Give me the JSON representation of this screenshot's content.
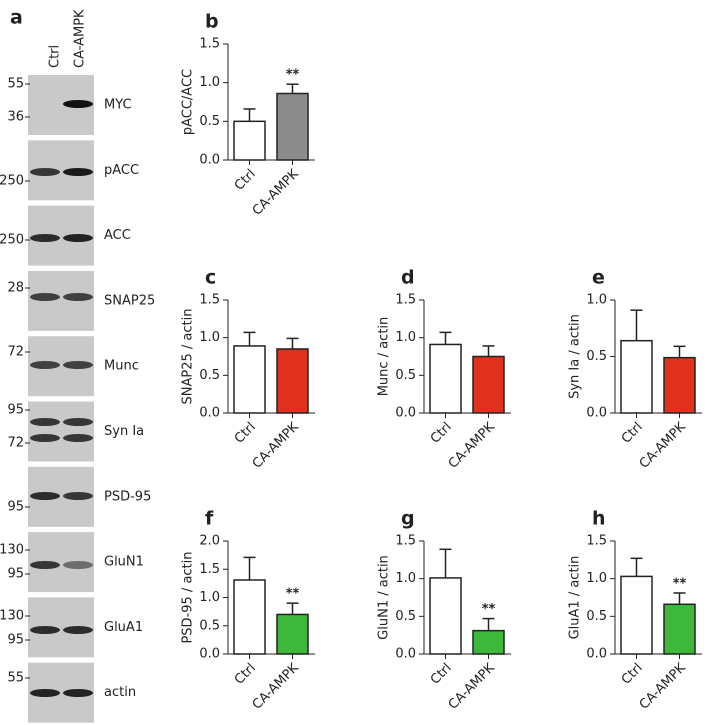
{
  "blot": {
    "panel_label": "a",
    "lanes": [
      "Ctrl",
      "CA-AMPK"
    ],
    "rows": [
      {
        "label": "MYC",
        "markers": [
          "55",
          "36"
        ]
      },
      {
        "label": "pACC",
        "markers": [
          "250"
        ]
      },
      {
        "label": "ACC",
        "markers": [
          "250"
        ]
      },
      {
        "label": "SNAP25",
        "markers": [
          "28"
        ]
      },
      {
        "label": "Munc",
        "markers": [
          "72"
        ]
      },
      {
        "label": "Syn Ia",
        "markers": [
          "95",
          "72"
        ]
      },
      {
        "label": "PSD-95",
        "markers": [
          "95"
        ]
      },
      {
        "label": "GluN1",
        "markers": [
          "130",
          "95"
        ]
      },
      {
        "label": "GluA1",
        "markers": [
          "130",
          "95"
        ]
      },
      {
        "label": "actin",
        "markers": [
          "55"
        ]
      }
    ]
  },
  "chart_data": [
    {
      "type": "bar",
      "panel_label": "b",
      "y_label": "pACC/ACC",
      "categories": [
        "Ctrl",
        "CA-AMPK"
      ],
      "values": [
        0.5,
        0.86
      ],
      "errors": [
        0.16,
        0.12
      ],
      "colors": [
        "#ffffff",
        "#8c8c8c"
      ],
      "significance": [
        null,
        "**"
      ],
      "ylim": [
        0,
        1.5
      ],
      "yticks": [
        {
          "value": 0,
          "label": "0.0"
        },
        0.5,
        {
          "value": 1,
          "label": "1.0"
        },
        1.5
      ]
    },
    {
      "type": "bar",
      "panel_label": "c",
      "y_label": "SNAP25 / actin",
      "categories": [
        "Ctrl",
        "CA-AMPK"
      ],
      "values": [
        0.89,
        0.85
      ],
      "errors": [
        0.18,
        0.14
      ],
      "colors": [
        "#ffffff",
        "#e0301e"
      ],
      "ylim": [
        0,
        1.5
      ],
      "yticks": [
        {
          "value": 0,
          "label": "0.0"
        },
        0.5,
        {
          "value": 1,
          "label": "1.0"
        },
        1.5
      ]
    },
    {
      "type": "bar",
      "panel_label": "d",
      "y_label": "Munc / actin",
      "categories": [
        "Ctrl",
        "CA-AMPK"
      ],
      "values": [
        0.91,
        0.75
      ],
      "errors": [
        0.16,
        0.14
      ],
      "colors": [
        "#ffffff",
        "#e0301e"
      ],
      "ylim": [
        0,
        1.5
      ],
      "yticks": [
        {
          "value": 0,
          "label": "0.0"
        },
        0.5,
        {
          "value": 1,
          "label": "1.0"
        },
        1.5
      ]
    },
    {
      "type": "bar",
      "panel_label": "e",
      "y_label": "Syn Ia / actin",
      "categories": [
        "Ctrl",
        "CA-AMPK"
      ],
      "values": [
        0.64,
        0.49
      ],
      "errors": [
        0.27,
        0.1
      ],
      "colors": [
        "#ffffff",
        "#e0301e"
      ],
      "ylim": [
        0,
        1
      ],
      "yticks": [
        {
          "value": 0,
          "label": "0.0"
        },
        0.5,
        {
          "value": 1,
          "label": "1.0"
        }
      ]
    },
    {
      "type": "bar",
      "panel_label": "f",
      "y_label": "PSD-95 / actin",
      "categories": [
        "Ctrl",
        "CA-AMPK"
      ],
      "values": [
        1.31,
        0.7
      ],
      "errors": [
        0.4,
        0.2
      ],
      "colors": [
        "#ffffff",
        "#3db83a"
      ],
      "significance": [
        null,
        "**"
      ],
      "ylim": [
        0,
        2
      ],
      "yticks": [
        {
          "value": 0,
          "label": "0.0"
        },
        0.5,
        {
          "value": 1,
          "label": "1.0"
        },
        1.5,
        {
          "value": 2,
          "label": "2.0"
        }
      ]
    },
    {
      "type": "bar",
      "panel_label": "g",
      "y_label": "GluN1 / actin",
      "categories": [
        "Ctrl",
        "CA-AMPK"
      ],
      "values": [
        1.01,
        0.31
      ],
      "errors": [
        0.38,
        0.16
      ],
      "colors": [
        "#ffffff",
        "#3db83a"
      ],
      "significance": [
        null,
        "**"
      ],
      "ylim": [
        0,
        1.5
      ],
      "yticks": [
        {
          "value": 0,
          "label": "0.0"
        },
        0.5,
        {
          "value": 1,
          "label": "1.0"
        },
        1.5
      ]
    },
    {
      "type": "bar",
      "panel_label": "h",
      "y_label": "GluA1 / actin",
      "categories": [
        "Ctrl",
        "CA-AMPK"
      ],
      "values": [
        1.03,
        0.66
      ],
      "errors": [
        0.24,
        0.15
      ],
      "colors": [
        "#ffffff",
        "#3db83a"
      ],
      "significance": [
        null,
        "**"
      ],
      "ylim": [
        0,
        1.5
      ],
      "yticks": [
        {
          "value": 0,
          "label": "0.0"
        },
        0.5,
        {
          "value": 1,
          "label": "1.0"
        },
        1.5
      ]
    }
  ]
}
